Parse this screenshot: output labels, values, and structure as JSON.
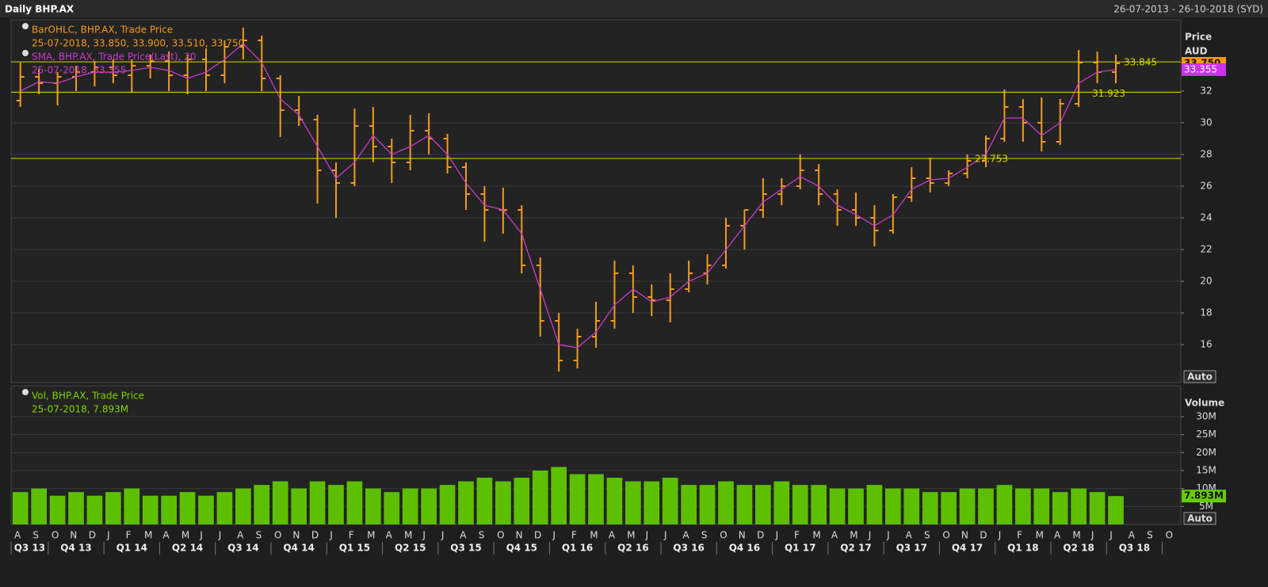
{
  "header": {
    "title": "Daily BHP.AX",
    "range": "26-07-2013 - 26-10-2018 (SYD)"
  },
  "chart_data": [
    {
      "type": "ohlc",
      "axis_title": "Price",
      "unit": "AUD",
      "button": "Auto",
      "color": "#f39a1e",
      "grid": true,
      "legend": [
        {
          "name": "BarOHLC, BHP.AX, Trade Price",
          "detail": "25-07-2018, 33.850, 33.900, 33.510, 33.750",
          "color": "#f39a1e"
        },
        {
          "name": "SMA, BHP.AX, Trade Price(Last),  20",
          "detail": "25-07-2018, 33.355",
          "color": "#c83cc8"
        }
      ],
      "open": [
        31.4,
        32.9,
        32.5,
        32.9,
        33.2,
        33.5,
        33.0,
        33.6,
        33.9,
        33.0,
        34.0,
        33.0,
        34.8,
        35.2,
        32.8,
        30.8,
        30.2,
        27.0,
        26.2,
        29.8,
        28.5,
        27.5,
        29.5,
        29.0,
        27.2,
        25.5,
        24.5,
        24.5,
        21.0,
        17.5,
        15.0,
        16.5,
        17.5,
        20.5,
        19.0,
        18.8,
        19.5,
        20.5,
        21.0,
        23.5,
        24.5,
        25.5,
        26.0,
        27.0,
        25.5,
        24.5,
        24.0,
        23.2,
        25.3,
        26.5,
        26.2,
        26.8,
        27.6,
        29.0,
        31.0,
        30.0,
        28.8,
        31.2,
        33.8,
        33.2,
        null,
        null,
        null
      ],
      "high": [
        33.8,
        33.4,
        33.2,
        33.6,
        33.9,
        34.0,
        34.0,
        34.3,
        34.5,
        34.3,
        34.7,
        35.2,
        36.0,
        35.5,
        33.0,
        31.7,
        30.5,
        27.5,
        30.9,
        31.0,
        29.0,
        30.5,
        30.6,
        29.3,
        27.5,
        26.0,
        25.9,
        24.8,
        21.5,
        18.0,
        17.0,
        18.7,
        21.3,
        21.0,
        19.8,
        20.5,
        21.3,
        21.7,
        24.0,
        24.5,
        26.5,
        26.5,
        28.0,
        27.4,
        25.8,
        25.6,
        24.8,
        25.5,
        27.2,
        27.8,
        27.0,
        28.0,
        29.2,
        32.1,
        31.5,
        31.6,
        31.5,
        34.6,
        34.5,
        34.3,
        null,
        null,
        null
      ],
      "low": [
        31.0,
        31.8,
        31.1,
        32.0,
        32.3,
        32.5,
        31.9,
        32.8,
        32.0,
        31.8,
        32.0,
        32.5,
        34.0,
        32.0,
        29.1,
        29.8,
        24.9,
        24.0,
        26.0,
        27.5,
        26.2,
        27.0,
        28.0,
        26.8,
        24.5,
        22.5,
        23.0,
        20.5,
        16.5,
        14.3,
        14.5,
        15.8,
        17.0,
        18.0,
        17.8,
        17.4,
        19.3,
        19.8,
        20.8,
        22.0,
        24.0,
        24.8,
        25.8,
        24.8,
        23.5,
        23.5,
        22.2,
        23.0,
        25.0,
        25.6,
        26.0,
        26.5,
        27.2,
        28.8,
        28.8,
        28.2,
        28.6,
        31.0,
        32.5,
        32.5,
        null,
        null,
        null
      ],
      "close": [
        32.9,
        32.5,
        32.9,
        33.2,
        33.5,
        33.0,
        33.6,
        33.9,
        33.0,
        34.0,
        33.0,
        34.8,
        35.2,
        32.8,
        30.8,
        30.2,
        27.0,
        26.2,
        29.8,
        28.5,
        27.5,
        29.5,
        29.0,
        27.2,
        25.5,
        24.5,
        24.5,
        21.0,
        17.5,
        15.0,
        16.5,
        17.5,
        20.5,
        19.0,
        18.8,
        19.5,
        20.5,
        21.0,
        23.5,
        24.5,
        25.5,
        26.0,
        27.0,
        25.5,
        24.5,
        24.0,
        23.2,
        25.3,
        26.5,
        26.2,
        26.8,
        27.6,
        29.0,
        31.0,
        30.0,
        28.8,
        31.2,
        33.8,
        33.2,
        33.75,
        null,
        null,
        null
      ],
      "sma": {
        "color": "#c83cc8",
        "values": [
          32.0,
          32.6,
          32.5,
          32.9,
          33.2,
          33.2,
          33.3,
          33.5,
          33.3,
          32.8,
          33.2,
          34.0,
          35.0,
          33.8,
          31.5,
          30.5,
          28.5,
          26.5,
          27.5,
          29.2,
          28.0,
          28.5,
          29.2,
          28.0,
          26.2,
          24.8,
          24.5,
          23.0,
          19.5,
          16.0,
          15.8,
          16.8,
          18.5,
          19.5,
          18.7,
          19.0,
          20.0,
          20.5,
          22.0,
          23.5,
          25.0,
          25.8,
          26.6,
          26.0,
          24.8,
          24.2,
          23.5,
          24.2,
          25.8,
          26.4,
          26.5,
          27.2,
          28.0,
          30.3,
          30.3,
          29.2,
          30.0,
          32.5,
          33.2,
          33.355,
          null,
          null,
          null
        ]
      },
      "hline_color": "#d4d400",
      "hlines": [
        {
          "value": 33.845,
          "label": "33.845"
        },
        {
          "value": 31.923,
          "label": "31.923"
        },
        {
          "value": 27.753,
          "label": "27.753"
        }
      ],
      "badges": [
        {
          "value": 33.75,
          "label": "33.750",
          "color": "#ff9a00"
        },
        {
          "value": 33.355,
          "label": "33.355",
          "color": "#cc33ee"
        }
      ],
      "ylim": [
        13.6,
        36.5
      ],
      "yticks": [
        16,
        18,
        20,
        22,
        24,
        26,
        28,
        30,
        32
      ]
    },
    {
      "type": "bar",
      "axis_title": "Volume",
      "button": "Auto",
      "color": "#5cbf00",
      "grid": true,
      "legend": [
        {
          "name": "Vol, BHP.AX, Trade Price",
          "detail": "25-07-2018, 7.893M",
          "color": "#7fd400"
        }
      ],
      "categories": [
        "A",
        "S",
        "O",
        "N",
        "D",
        "J",
        "F",
        "M",
        "A",
        "M",
        "J",
        "J",
        "A",
        "S",
        "O",
        "N",
        "D",
        "J",
        "F",
        "M",
        "A",
        "M",
        "J",
        "J",
        "A",
        "S",
        "O",
        "N",
        "D",
        "J",
        "F",
        "M",
        "A",
        "M",
        "J",
        "J",
        "A",
        "S",
        "O",
        "N",
        "D",
        "J",
        "F",
        "M",
        "A",
        "M",
        "J",
        "J",
        "A",
        "S",
        "O",
        "N",
        "D",
        "J",
        "F",
        "M",
        "A",
        "M",
        "J",
        "J",
        "A",
        "S",
        "O"
      ],
      "quarters": [
        "Q3 13",
        "Q4 13",
        "Q1 14",
        "Q2 14",
        "Q3 14",
        "Q4 14",
        "Q1 15",
        "Q2 15",
        "Q3 15",
        "Q4 15",
        "Q1 16",
        "Q2 16",
        "Q3 16",
        "Q4 16",
        "Q1 17",
        "Q2 17",
        "Q3 17",
        "Q4 17",
        "Q1 18",
        "Q2 18",
        "Q3 18"
      ],
      "values": [
        9,
        10,
        8,
        9,
        8,
        9,
        10,
        8,
        8,
        9,
        8,
        9,
        10,
        11,
        12,
        10,
        12,
        11,
        12,
        10,
        9,
        10,
        10,
        11,
        12,
        13,
        12,
        13,
        15,
        16,
        14,
        14,
        13,
        12,
        12,
        13,
        11,
        11,
        12,
        11,
        11,
        12,
        11,
        11,
        10,
        10,
        11,
        10,
        10,
        9,
        9,
        10,
        10,
        11,
        10,
        10,
        9,
        10,
        9,
        7.893,
        null,
        null,
        null
      ],
      "badges": [
        {
          "value": 7.893,
          "label": "7.893M",
          "color": "#66cc00"
        }
      ],
      "ylim": [
        0,
        38.6
      ],
      "yticks": [
        {
          "value": 5,
          "label": "5M"
        },
        {
          "value": 10,
          "label": "10M"
        },
        {
          "value": 15,
          "label": "15M"
        },
        {
          "value": 20,
          "label": "20M"
        },
        {
          "value": 25,
          "label": "25M"
        },
        {
          "value": 30,
          "label": "30M"
        }
      ]
    }
  ]
}
